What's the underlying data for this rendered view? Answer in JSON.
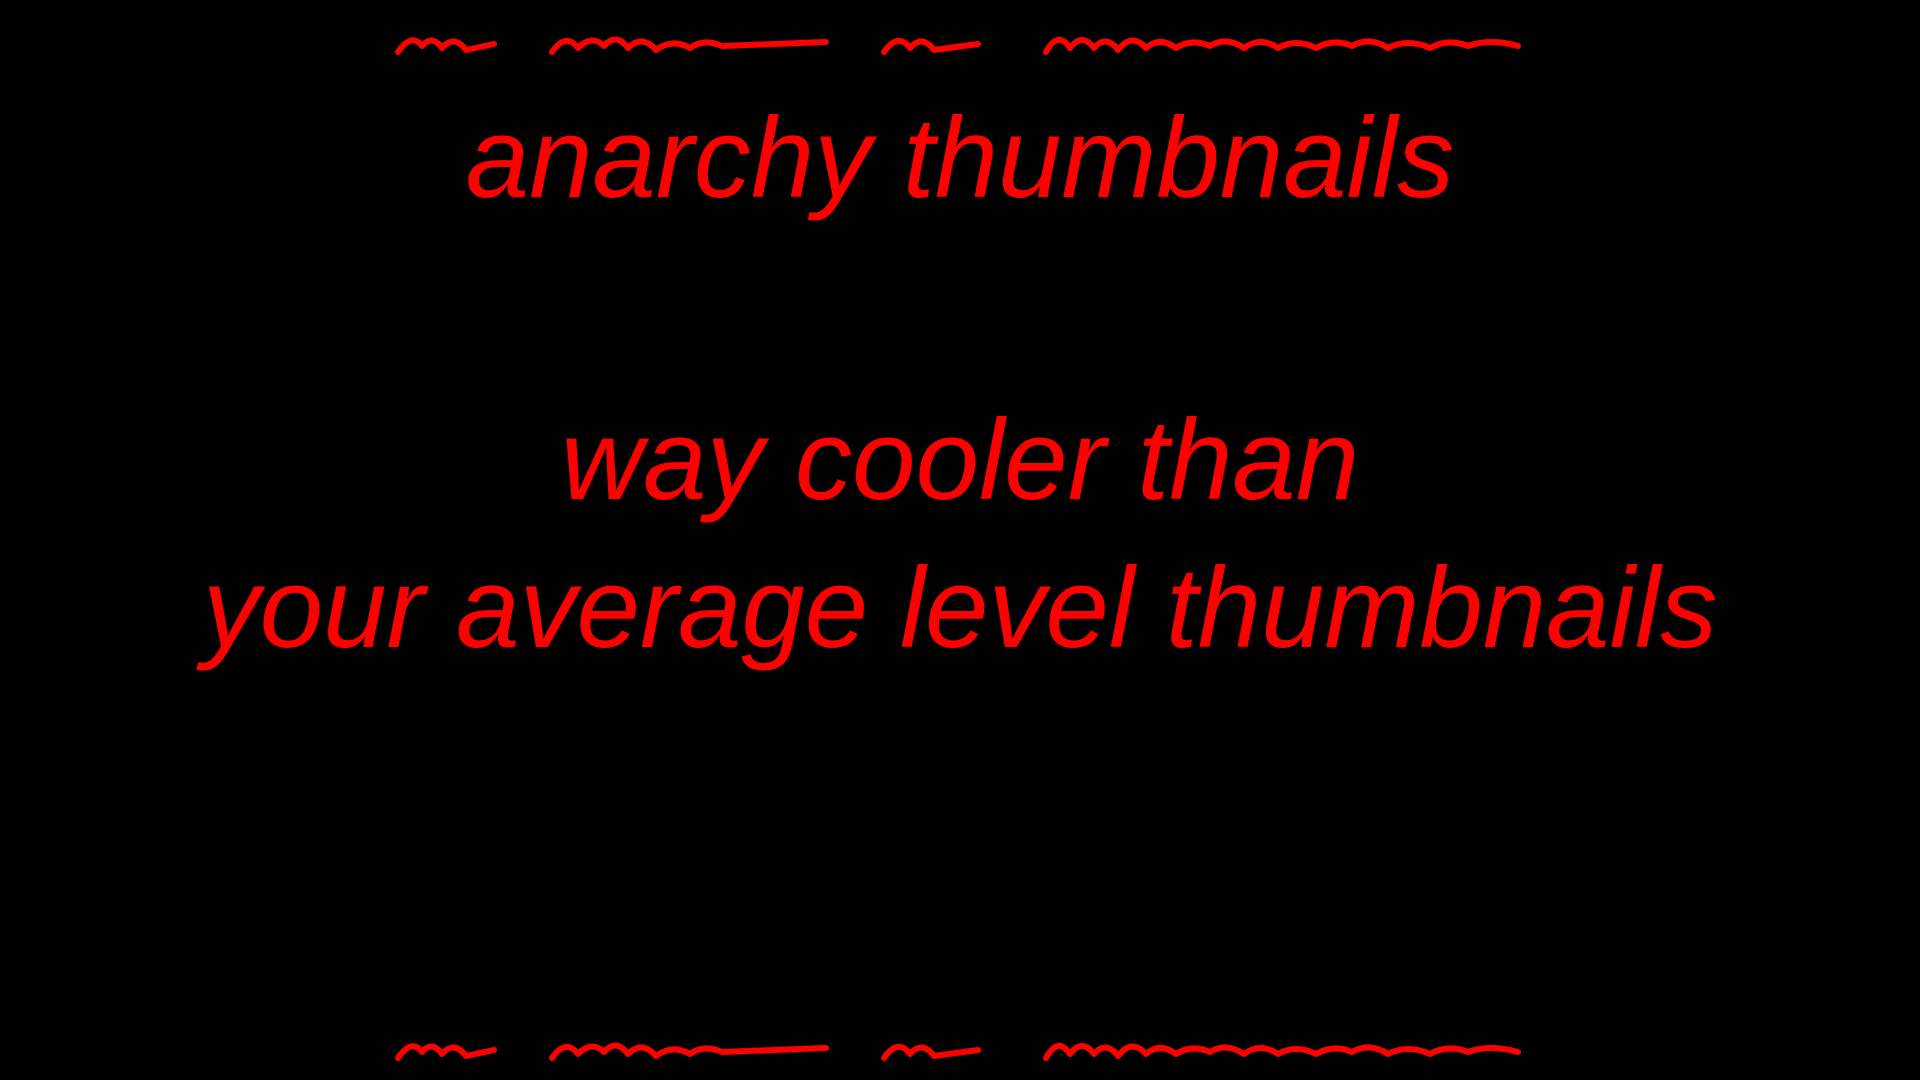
{
  "colors": {
    "background": "#000000",
    "text": "#ff0000"
  },
  "scribble_top": {
    "icon": "wavy-scribble-icon"
  },
  "title": "anarchy thumbnails",
  "subtitle": {
    "line1": "way cooler than",
    "line2": "your average level thumbnails"
  },
  "scribble_bottom": {
    "icon": "wavy-scribble-icon"
  }
}
